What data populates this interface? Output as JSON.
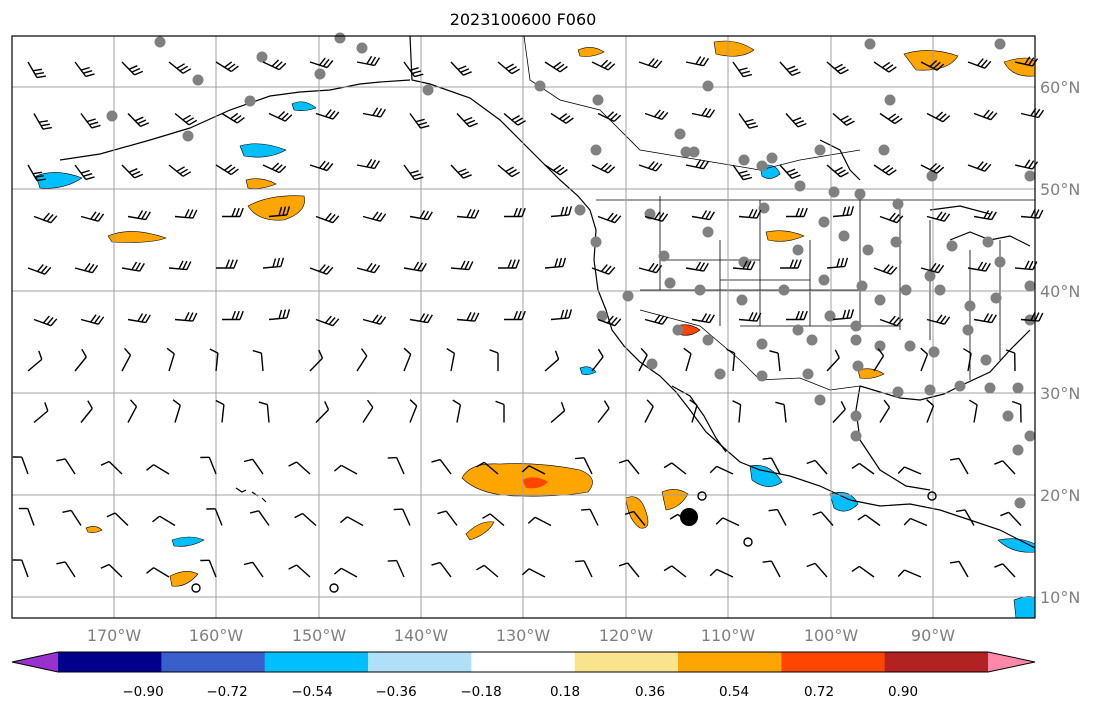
{
  "title": "2023100600 F060",
  "map": {
    "lon_range": [
      -180,
      -80
    ],
    "lat_range": [
      8,
      65
    ],
    "longitude_labels": [
      "170°W",
      "160°W",
      "150°W",
      "140°W",
      "130°W",
      "120°W",
      "110°W",
      "100°W",
      "90°W"
    ],
    "latitude_labels": [
      "60°N",
      "50°N",
      "40°N",
      "30°N",
      "20°N",
      "10°N"
    ],
    "gridline_color": "#a0a0a0",
    "label_color": "#808080",
    "coastline_color": "#000000",
    "station_marker_color": "#808080",
    "wind_barb_color": "#000000"
  },
  "colorbar": {
    "extend": "both",
    "colors": [
      "#9932cc",
      "#00008b",
      "#3a5fcd",
      "#00bfff",
      "#b0e0f8",
      "#ffffff",
      "#f8e48c",
      "#ffa500",
      "#ff4500",
      "#b22222",
      "#ff88aa"
    ],
    "tick_labels": [
      "−0.90",
      "−0.72",
      "−0.54",
      "−0.36",
      "−0.18",
      "0.18",
      "0.36",
      "0.54",
      "0.72",
      "0.90"
    ]
  }
}
